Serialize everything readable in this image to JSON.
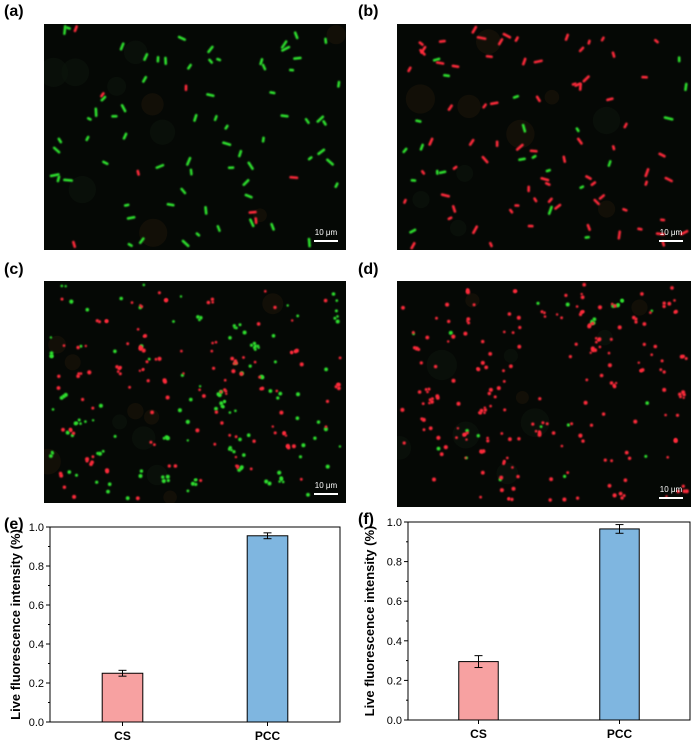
{
  "figure": {
    "panels": [
      {
        "label": "(a)",
        "scale_text": "10 μm",
        "green": "#2ee02e",
        "red": "#ff2a3a"
      },
      {
        "label": "(b)",
        "scale_text": "10 μm",
        "green": "#2ee02e",
        "red": "#ff2a3a"
      },
      {
        "label": "(c)",
        "scale_text": "10 μm",
        "green": "#2ee02e",
        "red": "#ff2a3a"
      },
      {
        "label": "(d)",
        "scale_text": "10 μm",
        "green": "#2ee02e",
        "red": "#ff2a3a"
      }
    ],
    "chart_labels": {
      "e": "(e)",
      "f": "(f)"
    }
  },
  "chart_data": [
    {
      "type": "bar",
      "panel": "(e)",
      "categories": [
        "CS",
        "PCC"
      ],
      "values": [
        0.25,
        0.955
      ],
      "errors": [
        0.015,
        0.015
      ],
      "colors": [
        "#f7a1a1",
        "#7fb6e0"
      ],
      "ylabel": "Live fluorescence intensity (%)",
      "xlabel": "",
      "ylim": [
        0.0,
        1.0
      ],
      "yticks": [
        "0.0",
        "0.2",
        "0.4",
        "0.6",
        "0.8",
        "1.0"
      ]
    },
    {
      "type": "bar",
      "panel": "(f)",
      "categories": [
        "CS",
        "PCC"
      ],
      "values": [
        0.295,
        0.965
      ],
      "errors": [
        0.03,
        0.022
      ],
      "colors": [
        "#f7a1a1",
        "#7fb6e0"
      ],
      "ylabel": "Live fluorescence intensity (%)",
      "xlabel": "",
      "ylim": [
        0.0,
        1.0
      ],
      "yticks": [
        "0.0",
        "0.2",
        "0.4",
        "0.6",
        "0.8",
        "1.0"
      ]
    }
  ]
}
